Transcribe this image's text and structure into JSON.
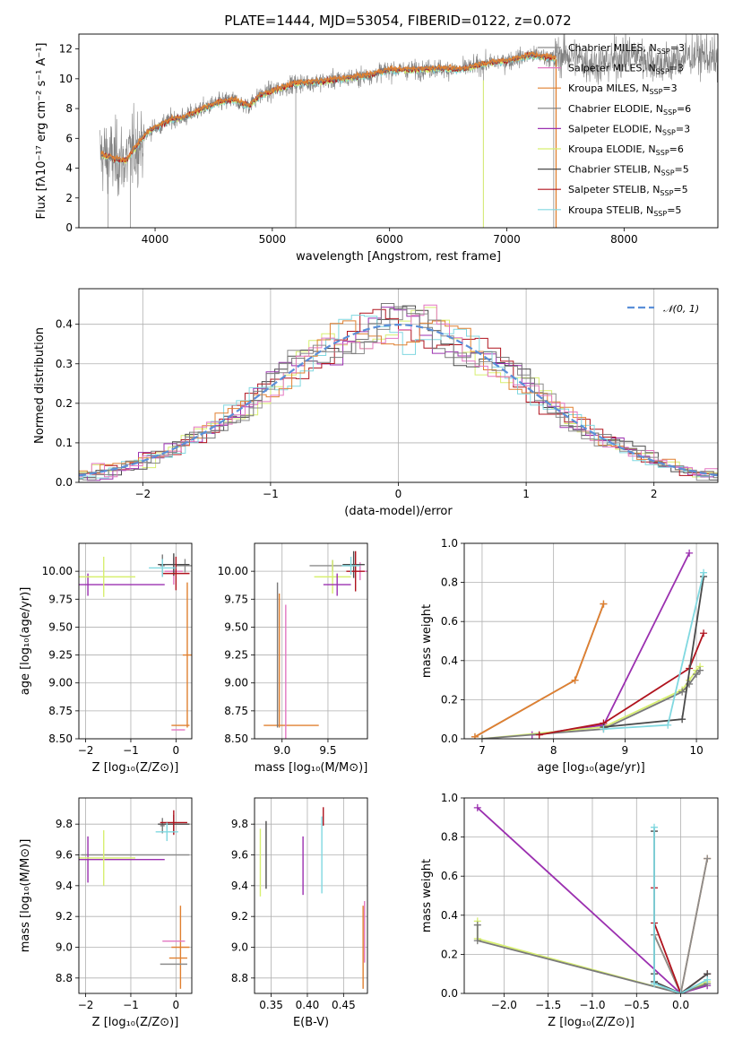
{
  "title": "PLATE=1444, MJD=53054, FIBERID=0122, z=0.072",
  "models": [
    {
      "name": "Chabrier MILES",
      "nssp": "3",
      "color": "#8c8c8c"
    },
    {
      "name": "Salpeter MILES",
      "nssp": "3",
      "color": "#e377c2"
    },
    {
      "name": "Kroupa MILES",
      "nssp": "3",
      "color": "#e08030"
    },
    {
      "name": "Chabrier ELODIE",
      "nssp": "6",
      "color": "#7a7a7a"
    },
    {
      "name": "Salpeter ELODIE",
      "nssp": "3",
      "color": "#9b30b0"
    },
    {
      "name": "Kroupa ELODIE",
      "nssp": "6",
      "color": "#d7ef70"
    },
    {
      "name": "Chabrier STELIB",
      "nssp": "5",
      "color": "#4a4a4a"
    },
    {
      "name": "Salpeter STELIB",
      "nssp": "5",
      "color": "#b0131e"
    },
    {
      "name": "Kroupa STELIB",
      "nssp": "5",
      "color": "#80d8e0"
    }
  ],
  "chart_data": [
    {
      "id": "spectrum",
      "type": "line",
      "xlabel": "wavelength [Angstrom, rest frame]",
      "ylabel": "Flux [fλ10⁻¹⁷ erg cm⁻² s⁻¹ A⁻¹]",
      "xlim": [
        3350,
        8800
      ],
      "ylim": [
        0,
        13
      ],
      "xticks": [
        4000,
        5000,
        6000,
        7000,
        8000
      ],
      "yticks": [
        0,
        2,
        4,
        6,
        8,
        10,
        12
      ],
      "data_color": "#808080",
      "continuum": {
        "x": [
          3550,
          3650,
          3750,
          3850,
          3950,
          4050,
          4150,
          4250,
          4350,
          4500,
          4650,
          4800,
          4900,
          5050,
          5200,
          5400,
          5600,
          5800,
          6000,
          6200,
          6400,
          6600,
          6800,
          7000,
          7200,
          7400
        ],
        "y": [
          4.9,
          4.6,
          4.5,
          5.6,
          6.5,
          6.9,
          7.3,
          7.4,
          7.8,
          8.3,
          8.6,
          8.2,
          8.9,
          9.3,
          9.7,
          9.8,
          10.0,
          10.2,
          10.6,
          10.6,
          10.7,
          10.6,
          11.0,
          11.2,
          11.6,
          11.4
        ]
      }
    },
    {
      "id": "residuals",
      "type": "step",
      "xlabel": "(data-model)/error",
      "ylabel": "Normed distribution",
      "xlim": [
        -2.5,
        2.5
      ],
      "ylim": [
        0,
        0.49
      ],
      "xticks": [
        -2,
        -1,
        0,
        1,
        2
      ],
      "yticks": [
        0.0,
        0.1,
        0.2,
        0.3,
        0.4
      ],
      "bin_width": 0.1,
      "reference_label": "𝒩(0, 1)",
      "reference_color": "#5a8fd8"
    },
    {
      "id": "age_vs_Z",
      "type": "errorbar",
      "xlabel": "Z [log₁₀(Z/Z⊙)]",
      "ylabel": "age  [log₁₀(age/yr)]",
      "xlim": [
        -2.15,
        0.35
      ],
      "ylim": [
        8.5,
        10.25
      ],
      "xticks": [
        -2,
        -1,
        0
      ],
      "yticks": [
        8.5,
        8.75,
        9.0,
        9.25,
        9.5,
        9.75,
        10.0
      ],
      "points": [
        {
          "m": 0,
          "x": 0.2,
          "xerr": 0.2,
          "y": 10.05,
          "yerr": 0.06
        },
        {
          "m": 1,
          "x": -0.05,
          "xerr": 0.2,
          "y": 10.0,
          "yerr": 0.12
        },
        {
          "m": 2,
          "x": 0.25,
          "xerr": 0.1,
          "y": 9.25,
          "yerr": 0.65
        },
        {
          "m": 3,
          "x": -0.3,
          "xerr": 0.05,
          "y": 10.05,
          "yerr": 0.1
        },
        {
          "m": 4,
          "x": -1.95,
          "xerr": 1.7,
          "y": 9.88,
          "yerr": 0.1
        },
        {
          "m": 5,
          "x": -1.6,
          "xerr": 0.7,
          "y": 9.95,
          "yerr": 0.18
        },
        {
          "m": 6,
          "x": -0.05,
          "xerr": 0.35,
          "y": 10.06,
          "yerr": 0.1
        },
        {
          "m": 7,
          "x": 0.0,
          "xerr": 0.3,
          "y": 9.98,
          "yerr": 0.15
        },
        {
          "m": 8,
          "x": -0.3,
          "xerr": 0.3,
          "y": 10.03,
          "yerr": 0.08
        },
        {
          "m": 2,
          "x": 0.1,
          "xerr": 0.2,
          "y": 8.62,
          "yerr": 0.0
        },
        {
          "m": 1,
          "x": 0.05,
          "xerr": 0.15,
          "y": 8.58,
          "yerr": 0.0
        }
      ]
    },
    {
      "id": "age_vs_mass",
      "type": "errorbar",
      "xlabel": "mass [log₁₀(M/M⊙)]",
      "ylabel": "",
      "xlim": [
        8.7,
        9.93
      ],
      "ylim": [
        8.5,
        10.25
      ],
      "xticks": [
        9.0,
        9.5
      ],
      "yticks": [
        8.5,
        8.75,
        9.0,
        9.25,
        9.5,
        9.75,
        10.0
      ],
      "points": [
        {
          "m": 0,
          "x": 9.55,
          "xerr": 0.25,
          "y": 10.05,
          "yerr": 0.05
        },
        {
          "m": 1,
          "x": 9.85,
          "xerr": 0.12,
          "y": 10.0,
          "yerr": 0.08
        },
        {
          "m": 2,
          "x": 9.1,
          "xerr": 0.3,
          "y": 8.62,
          "yerr": 0.0
        },
        {
          "m": 5,
          "x": 9.55,
          "xerr": 0.2,
          "y": 9.95,
          "yerr": 0.15
        },
        {
          "m": 4,
          "x": 9.6,
          "xerr": 0.15,
          "y": 9.88,
          "yerr": 0.1
        },
        {
          "m": 6,
          "x": 9.78,
          "xerr": 0.12,
          "y": 10.06,
          "yerr": 0.12
        },
        {
          "m": 7,
          "x": 9.8,
          "xerr": 0.1,
          "y": 10.0,
          "yerr": 0.18
        },
        {
          "m": 8,
          "x": 9.75,
          "xerr": 0.1,
          "y": 10.05,
          "yerr": 0.08
        },
        {
          "m": 3,
          "x": 8.95,
          "xerr": 0.0,
          "y": 9.25,
          "yerr": 0.65
        },
        {
          "m": 2,
          "x": 8.97,
          "xerr": 0.0,
          "y": 9.2,
          "yerr": 0.6
        },
        {
          "m": 1,
          "x": 9.04,
          "xerr": 0.0,
          "y": 9.1,
          "yerr": 0.6
        }
      ]
    },
    {
      "id": "weight_vs_age",
      "type": "line",
      "xlabel": "age  [log₁₀(age/yr)]",
      "ylabel": "mass weight",
      "xlim": [
        6.75,
        10.3
      ],
      "ylim": [
        0,
        1
      ],
      "xticks": [
        7,
        8,
        9,
        10
      ],
      "yticks": [
        0.0,
        0.2,
        0.4,
        0.6,
        0.8,
        1.0
      ],
      "series": [
        {
          "m": 0,
          "x": [
            6.9,
            8.3,
            8.7
          ],
          "y": [
            0.01,
            0.3,
            0.69
          ]
        },
        {
          "m": 2,
          "x": [
            6.9,
            8.3,
            8.7
          ],
          "y": [
            0.01,
            0.3,
            0.69
          ]
        },
        {
          "m": 4,
          "x": [
            7.7,
            8.7,
            9.9
          ],
          "y": [
            0.02,
            0.07,
            0.95
          ]
        },
        {
          "m": 5,
          "x": [
            7.0,
            8.7,
            9.8,
            9.9,
            10.0,
            10.05
          ],
          "y": [
            0.0,
            0.06,
            0.25,
            0.3,
            0.35,
            0.37
          ]
        },
        {
          "m": 3,
          "x": [
            7.0,
            8.7,
            9.8,
            9.9,
            10.0,
            10.05
          ],
          "y": [
            0.0,
            0.05,
            0.24,
            0.28,
            0.33,
            0.35
          ]
        },
        {
          "m": 7,
          "x": [
            7.8,
            8.7,
            9.9,
            10.1
          ],
          "y": [
            0.02,
            0.08,
            0.36,
            0.54
          ]
        },
        {
          "m": 6,
          "x": [
            8.7,
            9.8,
            10.1
          ],
          "y": [
            0.06,
            0.1,
            0.83
          ]
        },
        {
          "m": 8,
          "x": [
            8.7,
            9.6,
            10.1
          ],
          "y": [
            0.05,
            0.07,
            0.85
          ]
        }
      ]
    },
    {
      "id": "mass_vs_Z",
      "type": "errorbar",
      "xlabel": "Z [log₁₀(Z/Z⊙)]",
      "ylabel": "mass [log₁₀(M/M⊙)]",
      "xlim": [
        -2.15,
        0.35
      ],
      "ylim": [
        8.7,
        9.97
      ],
      "xticks": [
        -2,
        -1,
        0
      ],
      "yticks": [
        8.8,
        9.0,
        9.2,
        9.4,
        9.6,
        9.8
      ],
      "points": [
        {
          "m": 0,
          "x": -0.9,
          "xerr": 1.2,
          "y": 9.6,
          "yerr": 0.0
        },
        {
          "m": 3,
          "x": -0.3,
          "xerr": 0.05,
          "y": 9.79,
          "yerr": 0.05
        },
        {
          "m": 6,
          "x": -0.05,
          "xerr": 0.35,
          "y": 9.8,
          "yerr": 0.06
        },
        {
          "m": 7,
          "x": -0.05,
          "xerr": 0.3,
          "y": 9.81,
          "yerr": 0.08
        },
        {
          "m": 8,
          "x": -0.2,
          "xerr": 0.25,
          "y": 9.75,
          "yerr": 0.06
        },
        {
          "m": 4,
          "x": -1.95,
          "xerr": 1.7,
          "y": 9.57,
          "yerr": 0.15
        },
        {
          "m": 5,
          "x": -1.6,
          "xerr": 0.7,
          "y": 9.58,
          "yerr": 0.18
        },
        {
          "m": 2,
          "x": 0.1,
          "xerr": 0.2,
          "y": 9.0,
          "yerr": 0.27
        },
        {
          "m": 2,
          "x": 0.05,
          "xerr": 0.2,
          "y": 8.93,
          "yerr": 0.0
        },
        {
          "m": 1,
          "x": -0.05,
          "xerr": 0.25,
          "y": 9.04,
          "yerr": 0.0
        },
        {
          "m": 0,
          "x": -0.05,
          "xerr": 0.3,
          "y": 8.89,
          "yerr": 0.0
        }
      ]
    },
    {
      "id": "mass_vs_EBV",
      "type": "errorbar",
      "xlabel": "E(B-V)",
      "ylabel": "",
      "xlim": [
        0.327,
        0.483
      ],
      "ylim": [
        8.7,
        9.97
      ],
      "xticks": [
        0.35,
        0.4,
        0.45
      ],
      "yticks": [
        8.8,
        9.0,
        9.2,
        9.4,
        9.6,
        9.8
      ],
      "points": [
        {
          "m": 5,
          "x": 0.335,
          "xerr": 0,
          "y": 9.55,
          "yerr": 0.22
        },
        {
          "m": 6,
          "x": 0.343,
          "xerr": 0,
          "y": 9.6,
          "yerr": 0.22
        },
        {
          "m": 4,
          "x": 0.394,
          "xerr": 0,
          "y": 9.53,
          "yerr": 0.19
        },
        {
          "m": 8,
          "x": 0.42,
          "xerr": 0,
          "y": 9.6,
          "yerr": 0.25
        },
        {
          "m": 7,
          "x": 0.422,
          "xerr": 0,
          "y": 9.85,
          "yerr": 0.06
        },
        {
          "m": 2,
          "x": 0.477,
          "xerr": 0,
          "y": 9.0,
          "yerr": 0.27
        },
        {
          "m": 1,
          "x": 0.479,
          "xerr": 0,
          "y": 9.1,
          "yerr": 0.2
        }
      ]
    },
    {
      "id": "weight_vs_Z",
      "type": "line",
      "xlabel": "Z [log₁₀(Z/Z⊙)]",
      "ylabel": "mass weight",
      "xlim": [
        -2.45,
        0.42
      ],
      "ylim": [
        0,
        1
      ],
      "xticks": [
        -2.0,
        -1.5,
        -1.0,
        -0.5,
        0.0
      ],
      "yticks": [
        0.0,
        0.2,
        0.4,
        0.6,
        0.8,
        1.0
      ],
      "xticklabels": [
        "−2.0",
        "−1.5",
        "−1.0",
        "−0.5",
        "0.0"
      ],
      "series": [
        {
          "m": 4,
          "x": [
            -2.3,
            0.0,
            0.3
          ],
          "y": [
            0.95,
            0.0,
            0.04
          ]
        },
        {
          "m": 5,
          "x": [
            -2.3,
            -2.3,
            0.0,
            0.3
          ],
          "y": [
            0.37,
            0.28,
            0.0,
            0.06
          ]
        },
        {
          "m": 3,
          "x": [
            -2.3,
            -2.3,
            0.0,
            0.3
          ],
          "y": [
            0.35,
            0.27,
            0.0,
            0.05
          ]
        },
        {
          "m": 2,
          "x": [
            -0.3,
            0.0,
            0.3
          ],
          "y": [
            0.3,
            0.0,
            0.69
          ]
        },
        {
          "m": 0,
          "x": [
            -0.3,
            0.0,
            0.3
          ],
          "y": [
            0.3,
            0.0,
            0.69
          ]
        },
        {
          "m": 7,
          "x": [
            -0.3,
            -0.3,
            0.0,
            0.3
          ],
          "y": [
            0.54,
            0.36,
            0.0,
            0.1
          ]
        },
        {
          "m": 6,
          "x": [
            -0.3,
            -0.3,
            -0.3,
            0.0,
            0.3
          ],
          "y": [
            0.83,
            0.1,
            0.06,
            0.0,
            0.1
          ]
        },
        {
          "m": 8,
          "x": [
            -0.3,
            -0.3,
            0.0,
            0.3
          ],
          "y": [
            0.85,
            0.05,
            0.0,
            0.07
          ]
        }
      ]
    }
  ]
}
